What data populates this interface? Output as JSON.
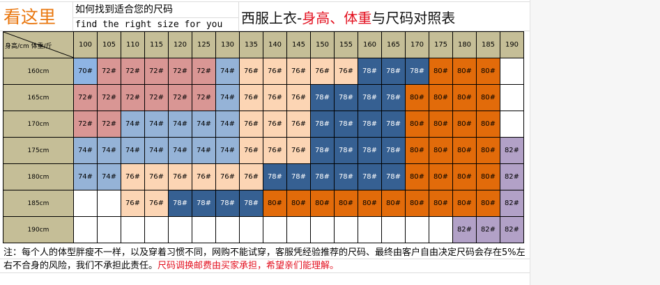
{
  "header": {
    "look_here": "看这里",
    "how_to": "如何找到适合您的尺码",
    "find_en": "find the right size for you",
    "title_prefix": "西服上衣-",
    "title_highlight": "身高、体重",
    "title_suffix": "与尺码对照表"
  },
  "table": {
    "corner_label": "身高/cm 体重/斤",
    "weights": [
      "100",
      "105",
      "110",
      "115",
      "120",
      "125",
      "130",
      "135",
      "140",
      "145",
      "150",
      "155",
      "160",
      "165",
      "170",
      "175",
      "180",
      "185",
      "190"
    ],
    "rows": [
      {
        "height": "160cm",
        "cells": [
          "70#",
          "72#",
          "72#",
          "72#",
          "72#",
          "72#",
          "74#",
          "76#",
          "76#",
          "76#",
          "76#",
          "76#",
          "78#",
          "78#",
          "78#",
          "80#",
          "80#",
          "80#",
          ""
        ]
      },
      {
        "height": "165cm",
        "cells": [
          "72#",
          "72#",
          "72#",
          "72#",
          "72#",
          "72#",
          "74#",
          "76#",
          "76#",
          "76#",
          "78#",
          "78#",
          "78#",
          "78#",
          "80#",
          "80#",
          "80#",
          "80#",
          ""
        ]
      },
      {
        "height": "170cm",
        "cells": [
          "72#",
          "72#",
          "74#",
          "74#",
          "74#",
          "74#",
          "74#",
          "76#",
          "76#",
          "76#",
          "78#",
          "78#",
          "78#",
          "78#",
          "80#",
          "80#",
          "80#",
          "80#",
          ""
        ]
      },
      {
        "height": "175cm",
        "cells": [
          "74#",
          "74#",
          "74#",
          "74#",
          "74#",
          "74#",
          "74#",
          "76#",
          "76#",
          "76#",
          "78#",
          "78#",
          "78#",
          "78#",
          "80#",
          "80#",
          "80#",
          "80#",
          "82#"
        ]
      },
      {
        "height": "180cm",
        "cells": [
          "74#",
          "74#",
          "76#",
          "76#",
          "76#",
          "76#",
          "76#",
          "76#",
          "78#",
          "78#",
          "78#",
          "78#",
          "78#",
          "78#",
          "80#",
          "80#",
          "80#",
          "80#",
          "82#"
        ]
      },
      {
        "height": "185cm",
        "cells": [
          "",
          "",
          "76#",
          "76#",
          "78#",
          "78#",
          "78#",
          "78#",
          "80#",
          "80#",
          "80#",
          "80#",
          "80#",
          "80#",
          "80#",
          "80#",
          "80#",
          "80#",
          "82#"
        ]
      },
      {
        "height": "190cm",
        "cells": [
          "",
          "",
          "",
          "",
          "",
          "",
          "",
          "",
          "",
          "",
          "",
          "",
          "",
          "",
          "",
          "",
          "82#",
          "82#",
          "82#"
        ]
      }
    ],
    "size_colors": {
      "70#": "#8eb4e3",
      "72#": "#d99694",
      "74#": "#95b3d7",
      "76#": "#fcd5b4",
      "78#": "#366092",
      "80#": "#e26b0a",
      "82#": "#b2a1c7"
    },
    "header_color": "#c5be97"
  },
  "note": {
    "line_main": "注：每个人的体型胖瘦不一样，以及穿着习惯不同，网购不能试穿，客服凭经验推荐的尺码、最终由客户自由决定尺码会存在5%左右不合身的风险，我们不承担此责任。",
    "line_red": "尺码调换邮费由买家承担，希望亲们能理解。"
  }
}
